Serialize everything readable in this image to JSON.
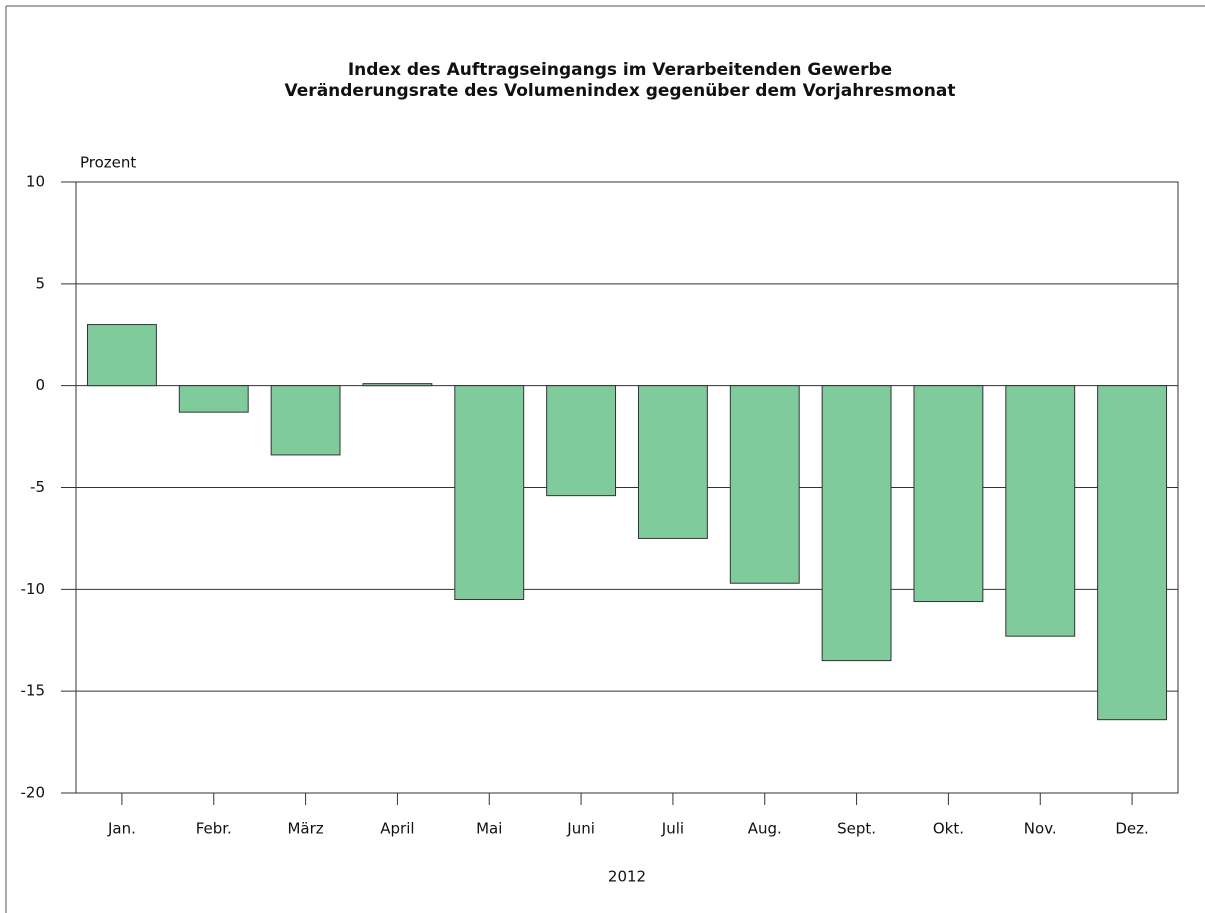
{
  "chart_data": {
    "type": "bar",
    "title": "Index des Auftragseingangs im Verarbeitenden Gewerbe",
    "subtitle": "Veränderungsrate des Volumenindex gegenüber dem Vorjahresmonat",
    "y_label": "Prozent",
    "x_label": "2012",
    "categories": [
      "Jan.",
      "Febr.",
      "März",
      "April",
      "Mai",
      "Juni",
      "Juli",
      "Aug.",
      "Sept.",
      "Okt.",
      "Nov.",
      "Dez."
    ],
    "values": [
      3.0,
      -1.3,
      -3.4,
      0.1,
      -10.5,
      -5.4,
      -7.5,
      -9.7,
      -13.5,
      -10.6,
      -12.3,
      -16.4
    ],
    "color": "#80cb9b",
    "ylim": [
      -20,
      10
    ],
    "yticks": [
      -20,
      -15,
      -10,
      -5,
      0,
      5,
      10
    ],
    "grid": true
  }
}
